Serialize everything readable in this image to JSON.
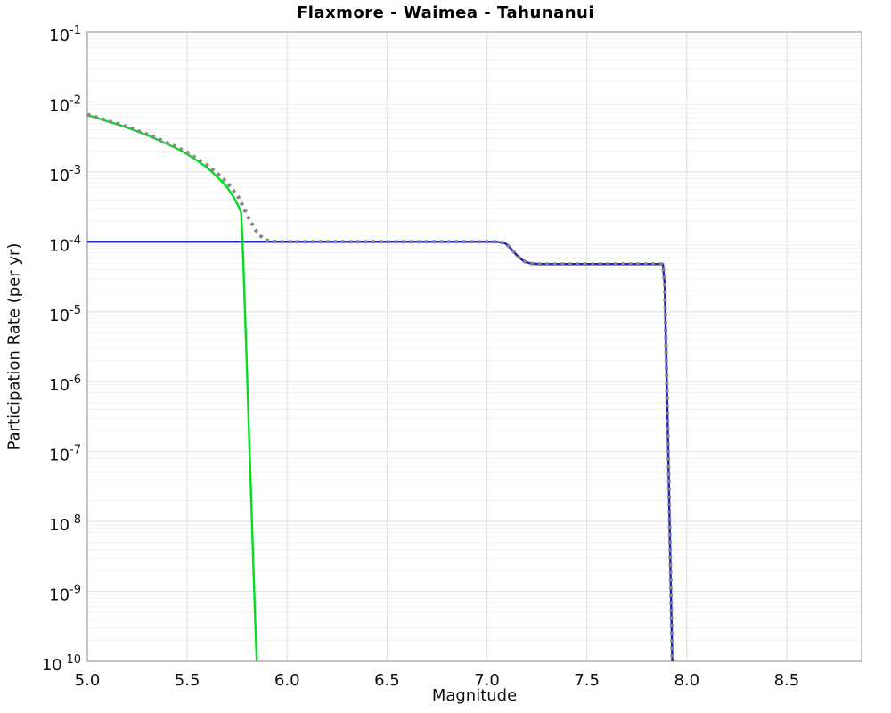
{
  "chart_data": {
    "type": "line",
    "title": "Flaxmore - Waimea - Tahunanui",
    "xlabel": "Magnitude",
    "ylabel": "Participation Rate (per yr)",
    "xlim": [
      5.0,
      8.875
    ],
    "ylim": [
      1e-10,
      0.1
    ],
    "grid": true,
    "legend": null,
    "x_ticks": [
      5.0,
      5.5,
      6.0,
      6.5,
      7.0,
      7.5,
      8.0,
      8.5
    ],
    "x_tick_labels": [
      "5.0",
      "5.5",
      "6.0",
      "6.5",
      "7.0",
      "7.5",
      "8.0",
      "8.5"
    ],
    "y_tick_exponents": [
      -1,
      -2,
      -3,
      -4,
      -5,
      -6,
      -7,
      -8,
      -9,
      -10
    ],
    "colors": {
      "blue_series": "#2323cc",
      "green_series": "#00dd22",
      "gray_dotted_series": "#878787"
    },
    "series": [
      {
        "name": "blue-solid",
        "color": "#2323cc",
        "style": "solid",
        "width": 2.5,
        "points": [
          [
            5.0,
            0.0001
          ],
          [
            7.05,
            0.0001
          ],
          [
            7.09,
            9.6e-05
          ],
          [
            7.11,
            8.6e-05
          ],
          [
            7.13,
            7.4e-05
          ],
          [
            7.15,
            6.4e-05
          ],
          [
            7.17,
            5.7e-05
          ],
          [
            7.19,
            5.2e-05
          ],
          [
            7.22,
            4.9e-05
          ],
          [
            7.26,
            4.8e-05
          ],
          [
            7.88,
            4.8e-05
          ],
          [
            7.89,
            2.5e-05
          ],
          [
            7.9,
            1e-06
          ],
          [
            7.91,
            4e-08
          ],
          [
            7.92,
            1.3e-09
          ],
          [
            7.928,
            1e-10
          ]
        ]
      },
      {
        "name": "green-solid",
        "color": "#00dd22",
        "style": "solid",
        "width": 2.4,
        "points": [
          [
            5.0,
            0.0065
          ],
          [
            5.05,
            0.0059
          ],
          [
            5.1,
            0.0053
          ],
          [
            5.15,
            0.0048
          ],
          [
            5.2,
            0.0043
          ],
          [
            5.25,
            0.0038
          ],
          [
            5.3,
            0.00335
          ],
          [
            5.35,
            0.0029
          ],
          [
            5.4,
            0.0025
          ],
          [
            5.45,
            0.00215
          ],
          [
            5.5,
            0.0018
          ],
          [
            5.55,
            0.00145
          ],
          [
            5.6,
            0.00115
          ],
          [
            5.65,
            0.00085
          ],
          [
            5.7,
            0.0006
          ],
          [
            5.73,
            0.00045
          ],
          [
            5.76,
            0.00031
          ],
          [
            5.77,
            0.00026
          ],
          [
            5.78,
            6e-05
          ],
          [
            5.79,
            8e-06
          ],
          [
            5.8,
            1.2e-06
          ],
          [
            5.81,
            1.6e-07
          ],
          [
            5.82,
            2.2e-08
          ],
          [
            5.83,
            3e-09
          ],
          [
            5.84,
            4e-10
          ],
          [
            5.848,
            1e-10
          ]
        ]
      },
      {
        "name": "gray-dotted",
        "color": "#878787",
        "style": "dotted",
        "width": 4,
        "points": [
          [
            5.0,
            0.0066
          ],
          [
            5.05,
            0.006
          ],
          [
            5.1,
            0.0054
          ],
          [
            5.15,
            0.0049
          ],
          [
            5.2,
            0.0044
          ],
          [
            5.25,
            0.0039
          ],
          [
            5.3,
            0.00345
          ],
          [
            5.35,
            0.003
          ],
          [
            5.4,
            0.0026
          ],
          [
            5.45,
            0.00225
          ],
          [
            5.5,
            0.0019
          ],
          [
            5.55,
            0.00155
          ],
          [
            5.6,
            0.00125
          ],
          [
            5.65,
            0.00095
          ],
          [
            5.7,
            0.0007
          ],
          [
            5.73,
            0.00055
          ],
          [
            5.76,
            0.00042
          ],
          [
            5.78,
            0.00032
          ],
          [
            5.8,
            0.00024
          ],
          [
            5.82,
            0.00019
          ],
          [
            5.84,
            0.00015
          ],
          [
            5.86,
            0.000127
          ],
          [
            5.88,
            0.000112
          ],
          [
            5.9,
            0.000105
          ],
          [
            5.93,
            0.000101
          ],
          [
            5.96,
            0.0001
          ],
          [
            7.05,
            0.0001
          ],
          [
            7.09,
            9.6e-05
          ],
          [
            7.11,
            8.6e-05
          ],
          [
            7.13,
            7.4e-05
          ],
          [
            7.15,
            6.4e-05
          ],
          [
            7.17,
            5.7e-05
          ],
          [
            7.19,
            5.2e-05
          ],
          [
            7.22,
            4.9e-05
          ],
          [
            7.26,
            4.8e-05
          ],
          [
            7.88,
            4.8e-05
          ],
          [
            7.89,
            2.5e-05
          ],
          [
            7.9,
            1e-06
          ],
          [
            7.91,
            4e-08
          ],
          [
            7.92,
            1.3e-09
          ],
          [
            7.928,
            1e-10
          ]
        ]
      }
    ]
  }
}
